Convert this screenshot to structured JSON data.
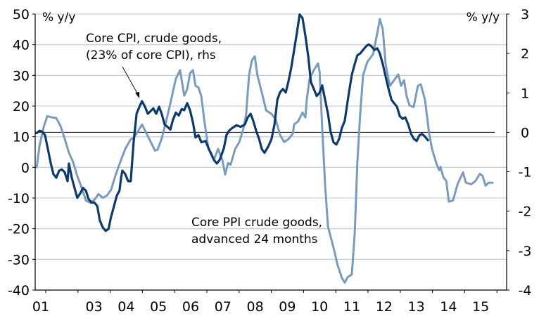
{
  "chart_data": {
    "type": "line",
    "title": "",
    "left_axis": {
      "label": "% y/y",
      "ylim": [
        -40,
        50
      ],
      "ticks": [
        -40,
        -30,
        -20,
        -10,
        0,
        10,
        20,
        30,
        40,
        50
      ],
      "tick_labels": [
        "-40",
        "-30",
        "-20",
        "-10",
        "0",
        "10",
        "20",
        "30",
        "40",
        "50"
      ]
    },
    "right_axis": {
      "label": "% y/y",
      "ylim": [
        -4,
        3
      ],
      "ticks": [
        -4,
        -3,
        -2,
        -1,
        0,
        1,
        2,
        3
      ],
      "tick_labels": [
        "-4",
        "-3",
        "-2",
        "-1",
        "0",
        "1",
        "2",
        "3"
      ]
    },
    "x_axis": {
      "xlim": [
        2001,
        2016
      ],
      "year_ticks": [
        2001,
        2002,
        2003,
        2004,
        2005,
        2006,
        2007,
        2008,
        2009,
        2010,
        2011,
        2012,
        2013,
        2014,
        2015,
        2016
      ],
      "labels": [
        {
          "year": 2001,
          "text": "01"
        },
        {
          "year": 2003,
          "text": "03"
        },
        {
          "year": 2004,
          "text": "04"
        },
        {
          "year": 2005,
          "text": "05"
        },
        {
          "year": 2006,
          "text": "06"
        },
        {
          "year": 2007,
          "text": "07"
        },
        {
          "year": 2008,
          "text": "08"
        },
        {
          "year": 2009,
          "text": "09"
        },
        {
          "year": 2010,
          "text": "10"
        },
        {
          "year": 2011,
          "text": "11"
        },
        {
          "year": 2012,
          "text": "12"
        },
        {
          "year": 2013,
          "text": "13"
        },
        {
          "year": 2014,
          "text": "14"
        },
        {
          "year": 2015,
          "text": "15"
        }
      ]
    },
    "grid": true,
    "zero_line": {
      "axis": "right",
      "value": 0
    },
    "series": [
      {
        "name": "Core PPI crude goods, advanced 24 months",
        "axis": "left",
        "color": "#7b9bbd",
        "points": [
          [
            2001.22,
            0.0
          ],
          [
            2001.31,
            7.1
          ],
          [
            2001.44,
            13.3
          ],
          [
            2001.55,
            16.7
          ],
          [
            2001.7,
            16.3
          ],
          [
            2001.83,
            16.1
          ],
          [
            2001.96,
            13.5
          ],
          [
            2002.09,
            9.4
          ],
          [
            2002.22,
            4.8
          ],
          [
            2002.35,
            1.8
          ],
          [
            2002.48,
            -2.8
          ],
          [
            2002.62,
            -6.7
          ],
          [
            2002.75,
            -10.8
          ],
          [
            2002.88,
            -11.5
          ],
          [
            2003.01,
            -10.6
          ],
          [
            2003.14,
            -8.7
          ],
          [
            2003.27,
            -9.9
          ],
          [
            2003.4,
            -9.2
          ],
          [
            2003.53,
            -7.3
          ],
          [
            2003.66,
            -2.8
          ],
          [
            2003.84,
            2.5
          ],
          [
            2003.97,
            6.0
          ],
          [
            2004.14,
            9.2
          ],
          [
            2004.23,
            9.6
          ],
          [
            2004.36,
            11.7
          ],
          [
            2004.49,
            14.0
          ],
          [
            2004.62,
            11.2
          ],
          [
            2004.76,
            8.3
          ],
          [
            2004.89,
            5.5
          ],
          [
            2004.97,
            5.7
          ],
          [
            2005.1,
            9.4
          ],
          [
            2005.24,
            15.1
          ],
          [
            2005.37,
            20.9
          ],
          [
            2005.54,
            28.9
          ],
          [
            2005.67,
            31.7
          ],
          [
            2005.8,
            23.4
          ],
          [
            2005.89,
            25.5
          ],
          [
            2005.98,
            30.7
          ],
          [
            2006.07,
            31.7
          ],
          [
            2006.15,
            26.6
          ],
          [
            2006.24,
            26.1
          ],
          [
            2006.33,
            23.2
          ],
          [
            2006.41,
            16.3
          ],
          [
            2006.55,
            6.0
          ],
          [
            2006.63,
            4.8
          ],
          [
            2006.72,
            2.5
          ],
          [
            2006.85,
            6.0
          ],
          [
            2006.98,
            2.5
          ],
          [
            2007.07,
            -2.3
          ],
          [
            2007.16,
            1.4
          ],
          [
            2007.24,
            0.9
          ],
          [
            2007.38,
            6.0
          ],
          [
            2007.51,
            8.3
          ],
          [
            2007.64,
            12.8
          ],
          [
            2007.72,
            17.4
          ],
          [
            2007.81,
            30.0
          ],
          [
            2007.9,
            34.9
          ],
          [
            2007.99,
            36.2
          ],
          [
            2008.07,
            30.0
          ],
          [
            2008.21,
            24.3
          ],
          [
            2008.34,
            18.6
          ],
          [
            2008.51,
            17.4
          ],
          [
            2008.64,
            15.6
          ],
          [
            2008.77,
            10.6
          ],
          [
            2008.9,
            8.3
          ],
          [
            2009.03,
            9.2
          ],
          [
            2009.17,
            11.0
          ],
          [
            2009.21,
            14.0
          ],
          [
            2009.34,
            15.1
          ],
          [
            2009.47,
            17.9
          ],
          [
            2009.56,
            16.3
          ],
          [
            2009.6,
            22.0
          ],
          [
            2009.69,
            28.9
          ],
          [
            2009.82,
            31.7
          ],
          [
            2009.95,
            33.9
          ],
          [
            2010.0,
            31.2
          ],
          [
            2010.08,
            12.8
          ],
          [
            2010.17,
            -5.5
          ],
          [
            2010.26,
            -19.3
          ],
          [
            2010.43,
            -26.1
          ],
          [
            2010.56,
            -31.9
          ],
          [
            2010.69,
            -36.0
          ],
          [
            2010.78,
            -37.6
          ],
          [
            2010.87,
            -35.8
          ],
          [
            2011.0,
            -34.9
          ],
          [
            2011.09,
            -21.6
          ],
          [
            2011.17,
            1.4
          ],
          [
            2011.26,
            17.4
          ],
          [
            2011.35,
            30.0
          ],
          [
            2011.48,
            34.4
          ],
          [
            2011.66,
            36.9
          ],
          [
            2011.79,
            43.8
          ],
          [
            2011.87,
            48.4
          ],
          [
            2011.96,
            45.0
          ],
          [
            2012.05,
            33.5
          ],
          [
            2012.18,
            26.6
          ],
          [
            2012.31,
            28.4
          ],
          [
            2012.44,
            30.3
          ],
          [
            2012.53,
            26.6
          ],
          [
            2012.62,
            28.4
          ],
          [
            2012.7,
            23.2
          ],
          [
            2012.79,
            20.2
          ],
          [
            2012.92,
            19.7
          ],
          [
            2013.05,
            26.6
          ],
          [
            2013.14,
            27.1
          ],
          [
            2013.27,
            22.0
          ],
          [
            2013.4,
            11.0
          ],
          [
            2013.49,
            6.0
          ],
          [
            2013.62,
            1.4
          ],
          [
            2013.71,
            -0.9
          ],
          [
            2013.75,
            0.2
          ],
          [
            2013.84,
            -3.2
          ],
          [
            2013.93,
            -4.4
          ],
          [
            2014.01,
            -11.2
          ],
          [
            2014.14,
            -10.8
          ],
          [
            2014.28,
            -5.5
          ],
          [
            2014.45,
            -1.6
          ],
          [
            2014.54,
            -5.0
          ],
          [
            2014.71,
            -5.5
          ],
          [
            2014.84,
            -4.4
          ],
          [
            2014.97,
            -2.1
          ],
          [
            2015.06,
            -2.8
          ],
          [
            2015.15,
            -6.0
          ],
          [
            2015.24,
            -5.0
          ],
          [
            2015.37,
            -5.0
          ]
        ]
      },
      {
        "name": "Core CPI, crude goods, (23% of core CPI), rhs",
        "axis": "right",
        "color": "#0d3a6b",
        "points": [
          [
            2001.22,
            -0.02
          ],
          [
            2001.31,
            0.04
          ],
          [
            2001.39,
            0.02
          ],
          [
            2001.48,
            -0.07
          ],
          [
            2001.57,
            -0.43
          ],
          [
            2001.66,
            -0.79
          ],
          [
            2001.74,
            -1.06
          ],
          [
            2001.83,
            -1.15
          ],
          [
            2001.92,
            -0.97
          ],
          [
            2002.0,
            -0.94
          ],
          [
            2002.09,
            -1.01
          ],
          [
            2002.18,
            -1.24
          ],
          [
            2002.22,
            -0.79
          ],
          [
            2002.31,
            -1.15
          ],
          [
            2002.4,
            -1.42
          ],
          [
            2002.48,
            -1.66
          ],
          [
            2002.57,
            -1.55
          ],
          [
            2002.66,
            -1.41
          ],
          [
            2002.75,
            -1.48
          ],
          [
            2002.83,
            -1.69
          ],
          [
            2002.92,
            -1.78
          ],
          [
            2003.01,
            -1.78
          ],
          [
            2003.1,
            -1.87
          ],
          [
            2003.18,
            -2.23
          ],
          [
            2003.27,
            -2.41
          ],
          [
            2003.36,
            -2.5
          ],
          [
            2003.45,
            -2.45
          ],
          [
            2003.53,
            -2.14
          ],
          [
            2003.62,
            -1.87
          ],
          [
            2003.71,
            -1.6
          ],
          [
            2003.79,
            -1.48
          ],
          [
            2003.84,
            -1.15
          ],
          [
            2003.88,
            -0.97
          ],
          [
            2003.97,
            -1.06
          ],
          [
            2004.06,
            -1.24
          ],
          [
            2004.14,
            -1.24
          ],
          [
            2004.23,
            -0.25
          ],
          [
            2004.32,
            0.47
          ],
          [
            2004.41,
            0.65
          ],
          [
            2004.49,
            0.79
          ],
          [
            2004.58,
            0.65
          ],
          [
            2004.67,
            0.47
          ],
          [
            2004.76,
            0.54
          ],
          [
            2004.84,
            0.61
          ],
          [
            2004.93,
            0.47
          ],
          [
            2005.02,
            0.65
          ],
          [
            2005.1,
            0.47
          ],
          [
            2005.19,
            0.2
          ],
          [
            2005.28,
            0.14
          ],
          [
            2005.37,
            0.07
          ],
          [
            2005.45,
            0.32
          ],
          [
            2005.54,
            0.5
          ],
          [
            2005.63,
            0.43
          ],
          [
            2005.72,
            0.59
          ],
          [
            2005.8,
            0.56
          ],
          [
            2005.89,
            0.74
          ],
          [
            2005.98,
            0.56
          ],
          [
            2006.07,
            0.25
          ],
          [
            2006.15,
            -0.13
          ],
          [
            2006.24,
            -0.07
          ],
          [
            2006.33,
            -0.25
          ],
          [
            2006.46,
            -0.22
          ],
          [
            2006.59,
            -0.47
          ],
          [
            2006.72,
            -0.7
          ],
          [
            2006.81,
            -0.79
          ],
          [
            2006.9,
            -0.7
          ],
          [
            2007.03,
            -0.4
          ],
          [
            2007.11,
            -0.07
          ],
          [
            2007.2,
            0.05
          ],
          [
            2007.29,
            0.11
          ],
          [
            2007.42,
            0.18
          ],
          [
            2007.55,
            0.14
          ],
          [
            2007.68,
            0.2
          ],
          [
            2007.77,
            0.38
          ],
          [
            2007.86,
            0.47
          ],
          [
            2007.94,
            0.29
          ],
          [
            2008.03,
            0.04
          ],
          [
            2008.12,
            -0.16
          ],
          [
            2008.21,
            -0.43
          ],
          [
            2008.29,
            -0.52
          ],
          [
            2008.42,
            -0.34
          ],
          [
            2008.51,
            -0.16
          ],
          [
            2008.6,
            0.2
          ],
          [
            2008.69,
            0.83
          ],
          [
            2008.77,
            1.01
          ],
          [
            2008.86,
            1.1
          ],
          [
            2008.95,
            1.01
          ],
          [
            2009.03,
            1.28
          ],
          [
            2009.12,
            1.64
          ],
          [
            2009.21,
            2.09
          ],
          [
            2009.3,
            2.54
          ],
          [
            2009.38,
            2.99
          ],
          [
            2009.47,
            2.9
          ],
          [
            2009.56,
            2.45
          ],
          [
            2009.65,
            1.91
          ],
          [
            2009.73,
            1.28
          ],
          [
            2009.82,
            1.1
          ],
          [
            2009.91,
            0.92
          ],
          [
            2010.0,
            1.01
          ],
          [
            2010.08,
            1.19
          ],
          [
            2010.17,
            0.83
          ],
          [
            2010.26,
            0.47
          ],
          [
            2010.34,
            0.02
          ],
          [
            2010.43,
            -0.25
          ],
          [
            2010.52,
            -0.31
          ],
          [
            2010.61,
            -0.16
          ],
          [
            2010.69,
            0.11
          ],
          [
            2010.78,
            0.29
          ],
          [
            2010.91,
            1.01
          ],
          [
            2011.0,
            1.46
          ],
          [
            2011.09,
            1.73
          ],
          [
            2011.17,
            1.95
          ],
          [
            2011.26,
            2.0
          ],
          [
            2011.35,
            2.09
          ],
          [
            2011.44,
            2.18
          ],
          [
            2011.52,
            2.23
          ],
          [
            2011.61,
            2.18
          ],
          [
            2011.7,
            2.09
          ],
          [
            2011.79,
            2.13
          ],
          [
            2011.87,
            2.0
          ],
          [
            2011.96,
            1.73
          ],
          [
            2012.05,
            1.41
          ],
          [
            2012.14,
            1.1
          ],
          [
            2012.23,
            0.83
          ],
          [
            2012.31,
            0.74
          ],
          [
            2012.4,
            0.65
          ],
          [
            2012.49,
            0.41
          ],
          [
            2012.58,
            0.34
          ],
          [
            2012.66,
            0.38
          ],
          [
            2012.75,
            0.2
          ],
          [
            2012.84,
            -0.04
          ],
          [
            2012.92,
            -0.16
          ],
          [
            2013.01,
            -0.22
          ],
          [
            2013.1,
            -0.07
          ],
          [
            2013.18,
            -0.04
          ],
          [
            2013.27,
            -0.11
          ],
          [
            2013.36,
            -0.2
          ]
        ]
      }
    ],
    "annotations": [
      {
        "lines": [
          "Core CPI, crude goods,",
          "(23% of core CPI), rhs"
        ],
        "target_series": "Core CPI, crude goods, (23% of core CPI), rhs",
        "arrow": true
      },
      {
        "lines": [
          "Core PPI crude goods,",
          "advanced 24 months"
        ],
        "target_series": "Core PPI crude goods, advanced 24 months",
        "arrow": false
      }
    ],
    "colors": {
      "grid": "#c9d3de",
      "axis": "#000000"
    }
  }
}
